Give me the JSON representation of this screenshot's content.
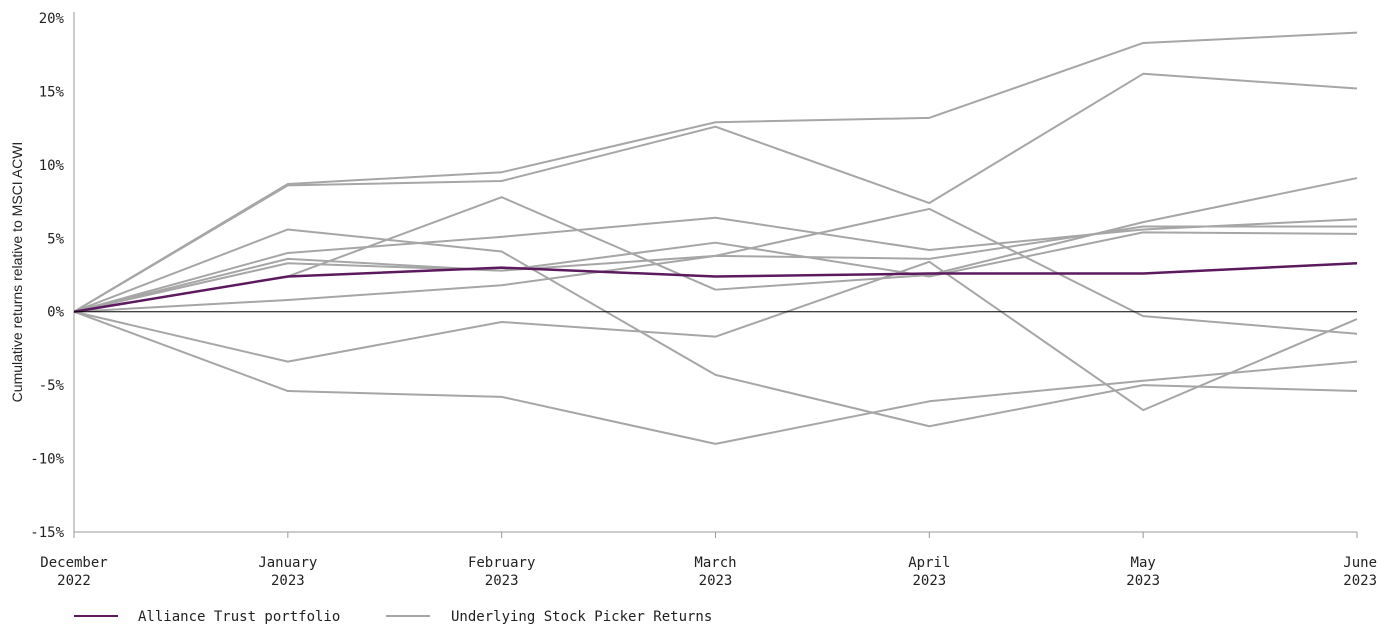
{
  "chart_data": {
    "type": "line",
    "ylabel": "Cumulative returns relative to MSCI ACWI",
    "ylim": [
      -15,
      20
    ],
    "y_ticks": [
      "20%",
      "15%",
      "10%",
      "5%",
      "0%",
      "-5%",
      "-10%",
      "-15%"
    ],
    "y_tick_values": [
      20,
      15,
      10,
      5,
      0,
      -5,
      -10,
      -15
    ],
    "categories": [
      {
        "month": "December",
        "year": "2022"
      },
      {
        "month": "January",
        "year": "2023"
      },
      {
        "month": "February",
        "year": "2023"
      },
      {
        "month": "March",
        "year": "2023"
      },
      {
        "month": "April",
        "year": "2023"
      },
      {
        "month": "May",
        "year": "2023"
      },
      {
        "month": "June",
        "year": "2023"
      }
    ],
    "grid": false,
    "legend": {
      "placement": "bottom-left",
      "entries": [
        {
          "label": "Alliance Trust portfolio",
          "color": "#5c1a5e"
        },
        {
          "label": "Underlying Stock Picker Returns",
          "color": "#a6a6a6"
        }
      ]
    },
    "colors": {
      "portfolio": "#5c1a5e",
      "stock_pickers": "#a6a6a6",
      "zero_line": "#000000"
    },
    "portfolio": {
      "values": [
        0,
        2.4,
        3.0,
        2.4,
        2.6,
        2.6,
        3.3
      ]
    },
    "stock_pickers": [
      {
        "values": [
          0,
          8.7,
          9.5,
          12.9,
          13.2,
          18.3,
          19.0
        ]
      },
      {
        "values": [
          0,
          8.6,
          8.9,
          12.6,
          7.4,
          16.2,
          15.2
        ]
      },
      {
        "values": [
          0,
          5.6,
          4.1,
          -4.3,
          -7.8,
          -5.0,
          -5.4
        ]
      },
      {
        "values": [
          0,
          4.0,
          5.1,
          6.4,
          4.2,
          5.6,
          6.3
        ]
      },
      {
        "values": [
          0,
          3.6,
          2.8,
          3.8,
          3.6,
          5.8,
          5.8
        ]
      },
      {
        "values": [
          0,
          3.3,
          2.8,
          4.7,
          2.4,
          5.4,
          5.3
        ]
      },
      {
        "values": [
          0,
          2.4,
          7.8,
          1.5,
          2.5,
          6.1,
          9.1
        ]
      },
      {
        "values": [
          0,
          0.8,
          1.8,
          3.8,
          7.0,
          -0.3,
          -1.5
        ]
      },
      {
        "values": [
          0,
          -3.4,
          -0.7,
          -1.7,
          3.4,
          -6.7,
          -0.5
        ]
      },
      {
        "values": [
          0,
          -5.4,
          -5.8,
          -9.0,
          -6.1,
          -4.7,
          -3.4
        ]
      }
    ]
  }
}
